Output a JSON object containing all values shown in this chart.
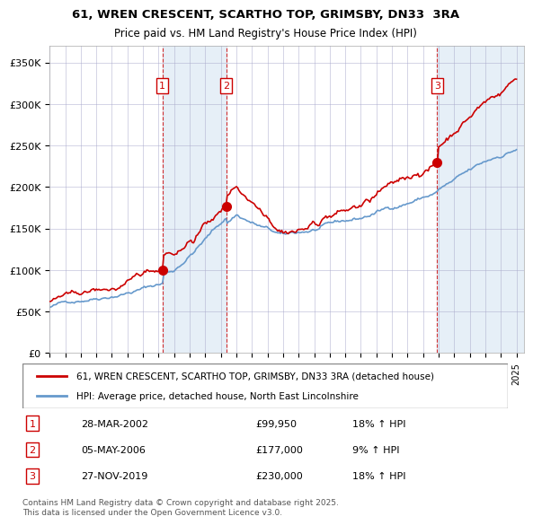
{
  "title1": "61, WREN CRESCENT, SCARTHO TOP, GRIMSBY, DN33  3RA",
  "title2": "Price paid vs. HM Land Registry's House Price Index (HPI)",
  "ylabel_ticks": [
    "£0",
    "£50K",
    "£100K",
    "£150K",
    "£200K",
    "£250K",
    "£300K",
    "£350K"
  ],
  "ytick_vals": [
    0,
    50000,
    100000,
    150000,
    200000,
    250000,
    300000,
    350000
  ],
  "ylim": [
    0,
    370000
  ],
  "xlim_start": 1995.0,
  "xlim_end": 2025.5,
  "sales": [
    {
      "num": 1,
      "date_num": 2002.24,
      "price": 99950,
      "label": "28-MAR-2002",
      "price_str": "£99,950",
      "hpi_str": "18% ↑ HPI"
    },
    {
      "num": 2,
      "date_num": 2006.34,
      "price": 177000,
      "label": "05-MAY-2006",
      "price_str": "£177,000",
      "hpi_str": "9% ↑ HPI"
    },
    {
      "num": 3,
      "date_num": 2019.91,
      "price": 230000,
      "label": "27-NOV-2019",
      "price_str": "£230,000",
      "hpi_str": "18% ↑ HPI"
    }
  ],
  "legend_line1": "61, WREN CRESCENT, SCARTHO TOP, GRIMSBY, DN33 3RA (detached house)",
  "legend_line2": "HPI: Average price, detached house, North East Lincolnshire",
  "footnote": "Contains HM Land Registry data © Crown copyright and database right 2025.\nThis data is licensed under the Open Government Licence v3.0.",
  "red_color": "#cc0000",
  "blue_color": "#6699cc",
  "bg_shaded": "#dce9f5",
  "grid_color": "#aaaacc",
  "dashed_color": "#cc0000"
}
